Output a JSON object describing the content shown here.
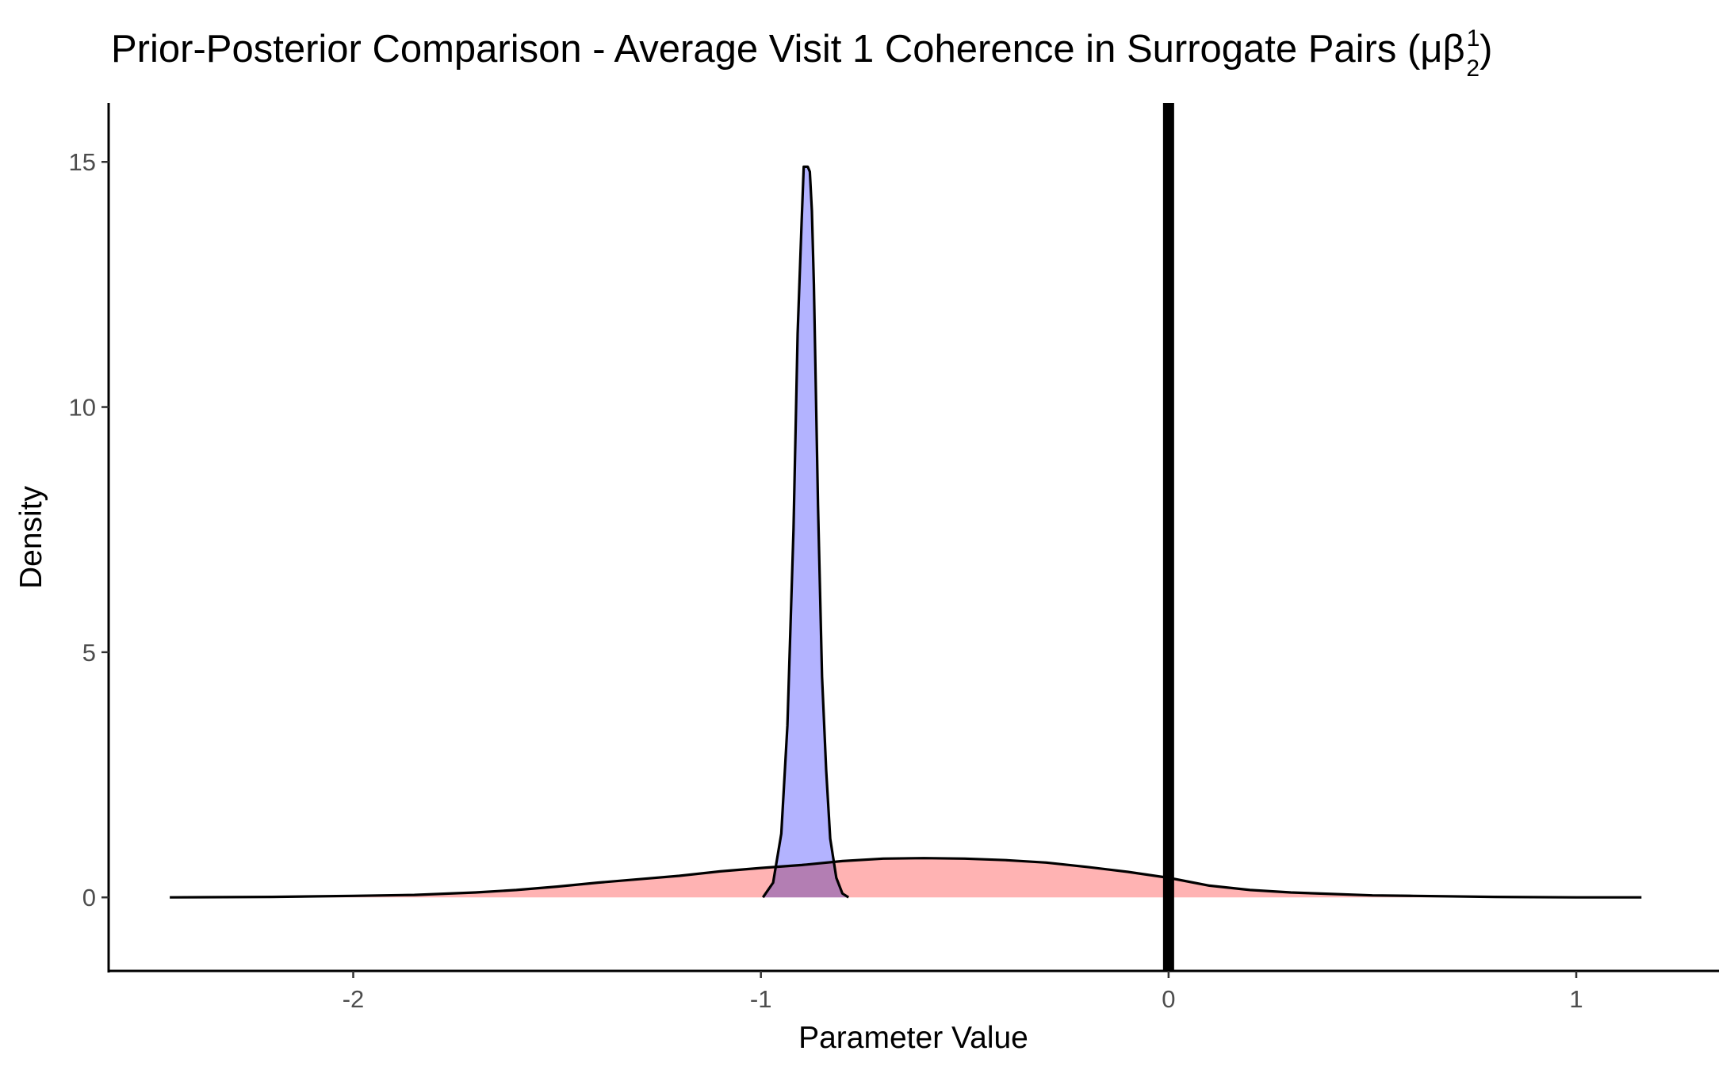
{
  "chart_data": {
    "type": "area",
    "title": "Prior-Posterior Comparison - Average Visit 1 Coherence in Surrogate Pairs (μβ",
    "title_superscript": "1",
    "title_subscript": "2",
    "title_close": ")",
    "xlabel": "Parameter Value",
    "ylabel": "Density",
    "xlim": [
      -2.6,
      1.35
    ],
    "ylim": [
      -1.5,
      16.2
    ],
    "x_ticks": [
      -2,
      -1,
      0,
      1
    ],
    "x_tick_labels": [
      "-2",
      "-1",
      "0",
      "1"
    ],
    "y_ticks": [
      0,
      5,
      10,
      15
    ],
    "y_tick_labels": [
      "0",
      "5",
      "10",
      "15"
    ],
    "grid": false,
    "legend": "none",
    "vline": {
      "x": 0,
      "color": "#000000"
    },
    "series": [
      {
        "fill": "#ffb3b3",
        "x": [
          -2.45,
          -2.2,
          -2.0,
          -1.85,
          -1.7,
          -1.6,
          -1.5,
          -1.4,
          -1.3,
          -1.2,
          -1.1,
          -1.0,
          -0.9,
          -0.8,
          -0.7,
          -0.6,
          -0.5,
          -0.4,
          -0.3,
          -0.2,
          -0.1,
          0.0,
          0.1,
          0.2,
          0.3,
          0.4,
          0.5,
          0.6,
          0.8,
          1.0,
          1.16
        ],
        "values": [
          0.0,
          0.01,
          0.03,
          0.05,
          0.1,
          0.15,
          0.22,
          0.3,
          0.37,
          0.44,
          0.53,
          0.6,
          0.66,
          0.74,
          0.79,
          0.8,
          0.79,
          0.76,
          0.71,
          0.62,
          0.52,
          0.4,
          0.24,
          0.15,
          0.1,
          0.07,
          0.04,
          0.03,
          0.01,
          0.0,
          0.0
        ]
      },
      {
        "fill": "#b3b3ff",
        "x": [
          -0.995,
          -0.97,
          -0.95,
          -0.935,
          -0.92,
          -0.91,
          -0.9,
          -0.895,
          -0.885,
          -0.88,
          -0.875,
          -0.87,
          -0.86,
          -0.85,
          -0.84,
          -0.83,
          -0.815,
          -0.8,
          -0.785
        ],
        "values": [
          0.0,
          0.3,
          1.3,
          3.5,
          7.5,
          11.5,
          13.8,
          14.9,
          14.9,
          14.8,
          14.0,
          12.5,
          8.0,
          4.5,
          2.6,
          1.2,
          0.4,
          0.08,
          0.0
        ]
      }
    ]
  }
}
